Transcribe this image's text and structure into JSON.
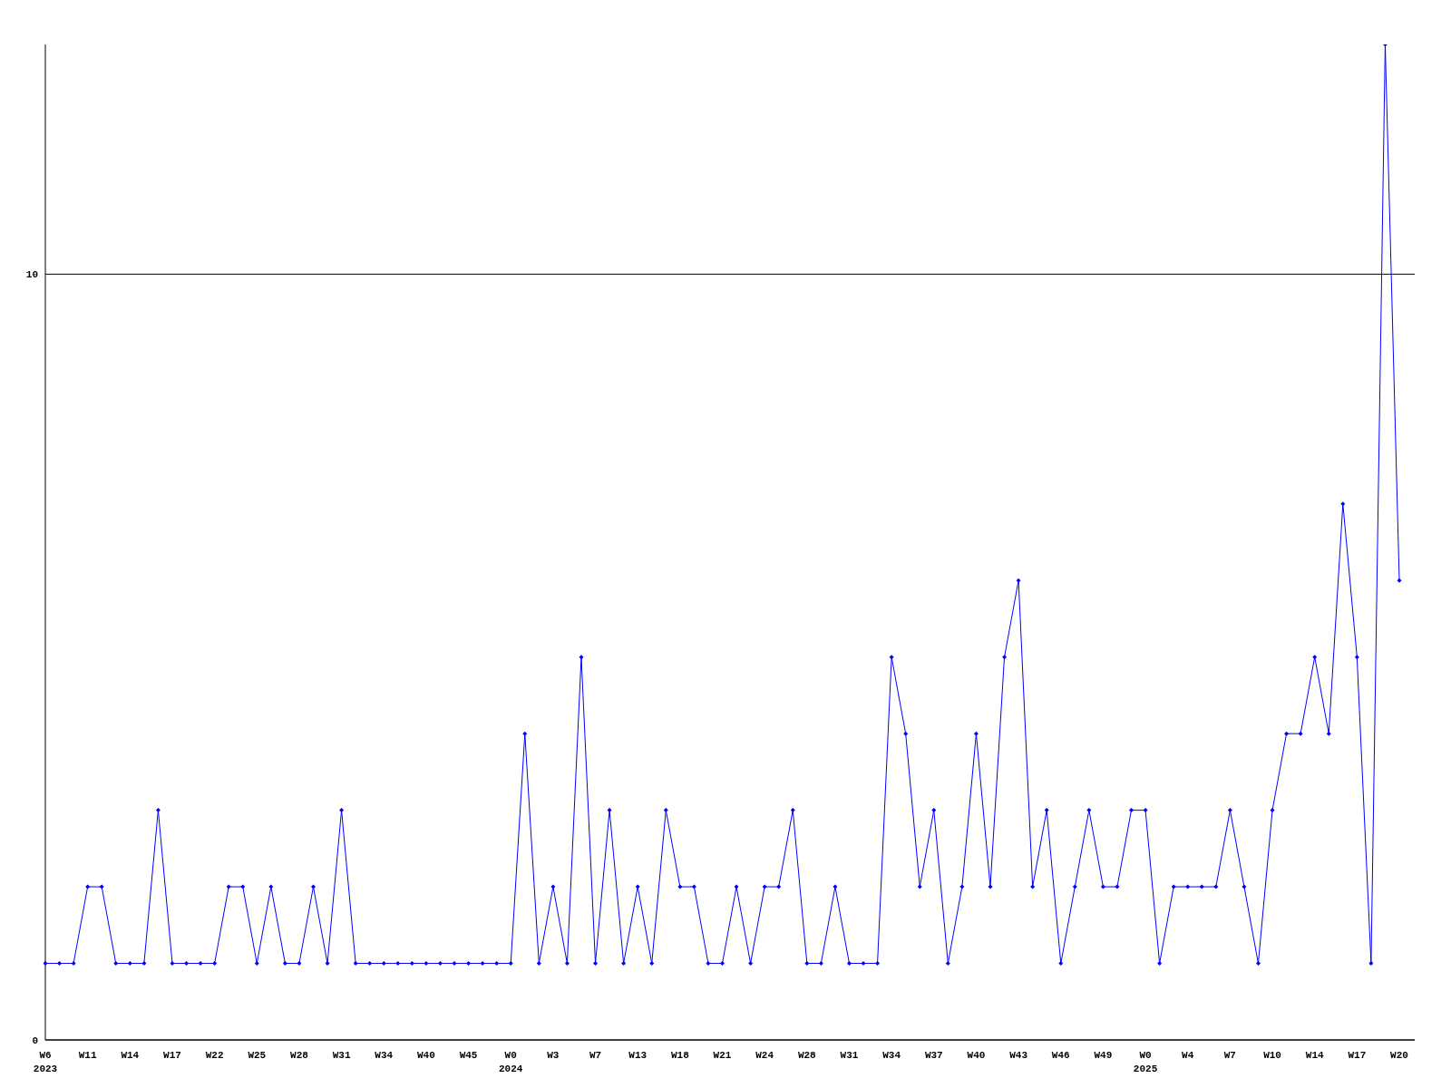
{
  "chart_data": {
    "type": "line",
    "categories": [
      "W6\n2023",
      null,
      null,
      "W11",
      null,
      null,
      "W14",
      null,
      null,
      "W17",
      null,
      null,
      "W22",
      null,
      null,
      "W25",
      null,
      null,
      "W28",
      null,
      null,
      "W31",
      null,
      null,
      "W34",
      null,
      null,
      "W40",
      null,
      null,
      "W45",
      null,
      null,
      "W0\n2024",
      null,
      null,
      "W3",
      null,
      null,
      "W7",
      null,
      null,
      "W13",
      null,
      null,
      "W18",
      null,
      null,
      "W21",
      null,
      null,
      "W24",
      null,
      null,
      "W28",
      null,
      null,
      "W31",
      null,
      null,
      "W34",
      null,
      null,
      "W37",
      null,
      null,
      "W40",
      null,
      null,
      "W43",
      null,
      null,
      "W46",
      null,
      null,
      "W49",
      null,
      null,
      "W0\n2025",
      null,
      null,
      "W4",
      null,
      null,
      "W7",
      null,
      null,
      "W10",
      null,
      null,
      "W14",
      null,
      null,
      "W17",
      null,
      null,
      "W20"
    ],
    "series": [
      {
        "color": "#0000ff",
        "values": [
          1,
          1,
          1,
          2,
          2,
          1,
          1,
          1,
          3,
          1,
          1,
          1,
          1,
          2,
          2,
          1,
          2,
          1,
          1,
          2,
          1,
          3,
          1,
          1,
          1,
          1,
          1,
          1,
          1,
          1,
          1,
          1,
          1,
          1,
          4,
          1,
          2,
          1,
          5,
          1,
          3,
          1,
          2,
          1,
          3,
          2,
          2,
          1,
          1,
          2,
          1,
          2,
          2,
          3,
          1,
          1,
          2,
          1,
          1,
          1,
          5,
          4,
          2,
          3,
          1,
          2,
          4,
          2,
          5,
          6,
          2,
          3,
          1,
          2,
          3,
          2,
          2,
          3,
          3,
          1,
          2,
          2,
          2,
          2,
          3,
          2,
          1,
          3,
          4,
          4,
          5,
          4,
          7,
          5,
          1,
          13,
          6
        ]
      }
    ],
    "ylim": [
      0,
      13
    ],
    "yticks": [
      0,
      10
    ],
    "grid": "y",
    "marker": "diamond",
    "line_style": "solid"
  }
}
